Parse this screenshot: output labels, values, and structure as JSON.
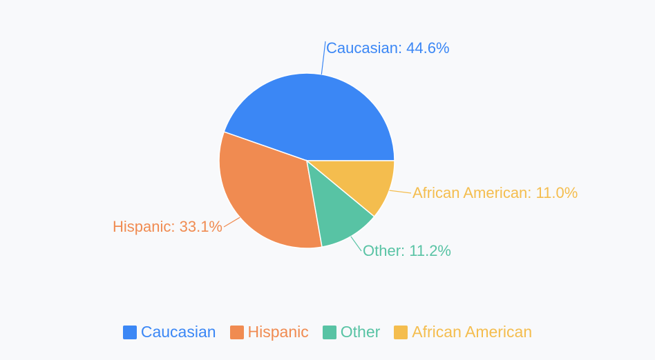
{
  "chart_data": {
    "type": "pie",
    "title": "",
    "slices": [
      {
        "name": "Caucasian",
        "value": 44.6,
        "label": "Caucasian: 44.6%",
        "color": "#3b87f5"
      },
      {
        "name": "Hispanic",
        "value": 33.1,
        "label": "Hispanic: 33.1%",
        "color": "#f08b51"
      },
      {
        "name": "Other",
        "value": 11.2,
        "label": "Other: 11.2%",
        "color": "#58c3a4"
      },
      {
        "name": "African American",
        "value": 11.0,
        "label": "African American: 11.0%",
        "color": "#f4bd4e"
      }
    ],
    "start_angle_deg": 0,
    "direction": "counterclockwise",
    "legend_position": "bottom"
  },
  "legend": {
    "items": [
      {
        "label": "Caucasian",
        "color": "#3b87f5"
      },
      {
        "label": "Hispanic",
        "color": "#f08b51"
      },
      {
        "label": "Other",
        "color": "#58c3a4"
      },
      {
        "label": "African American",
        "color": "#f4bd4e"
      }
    ]
  }
}
